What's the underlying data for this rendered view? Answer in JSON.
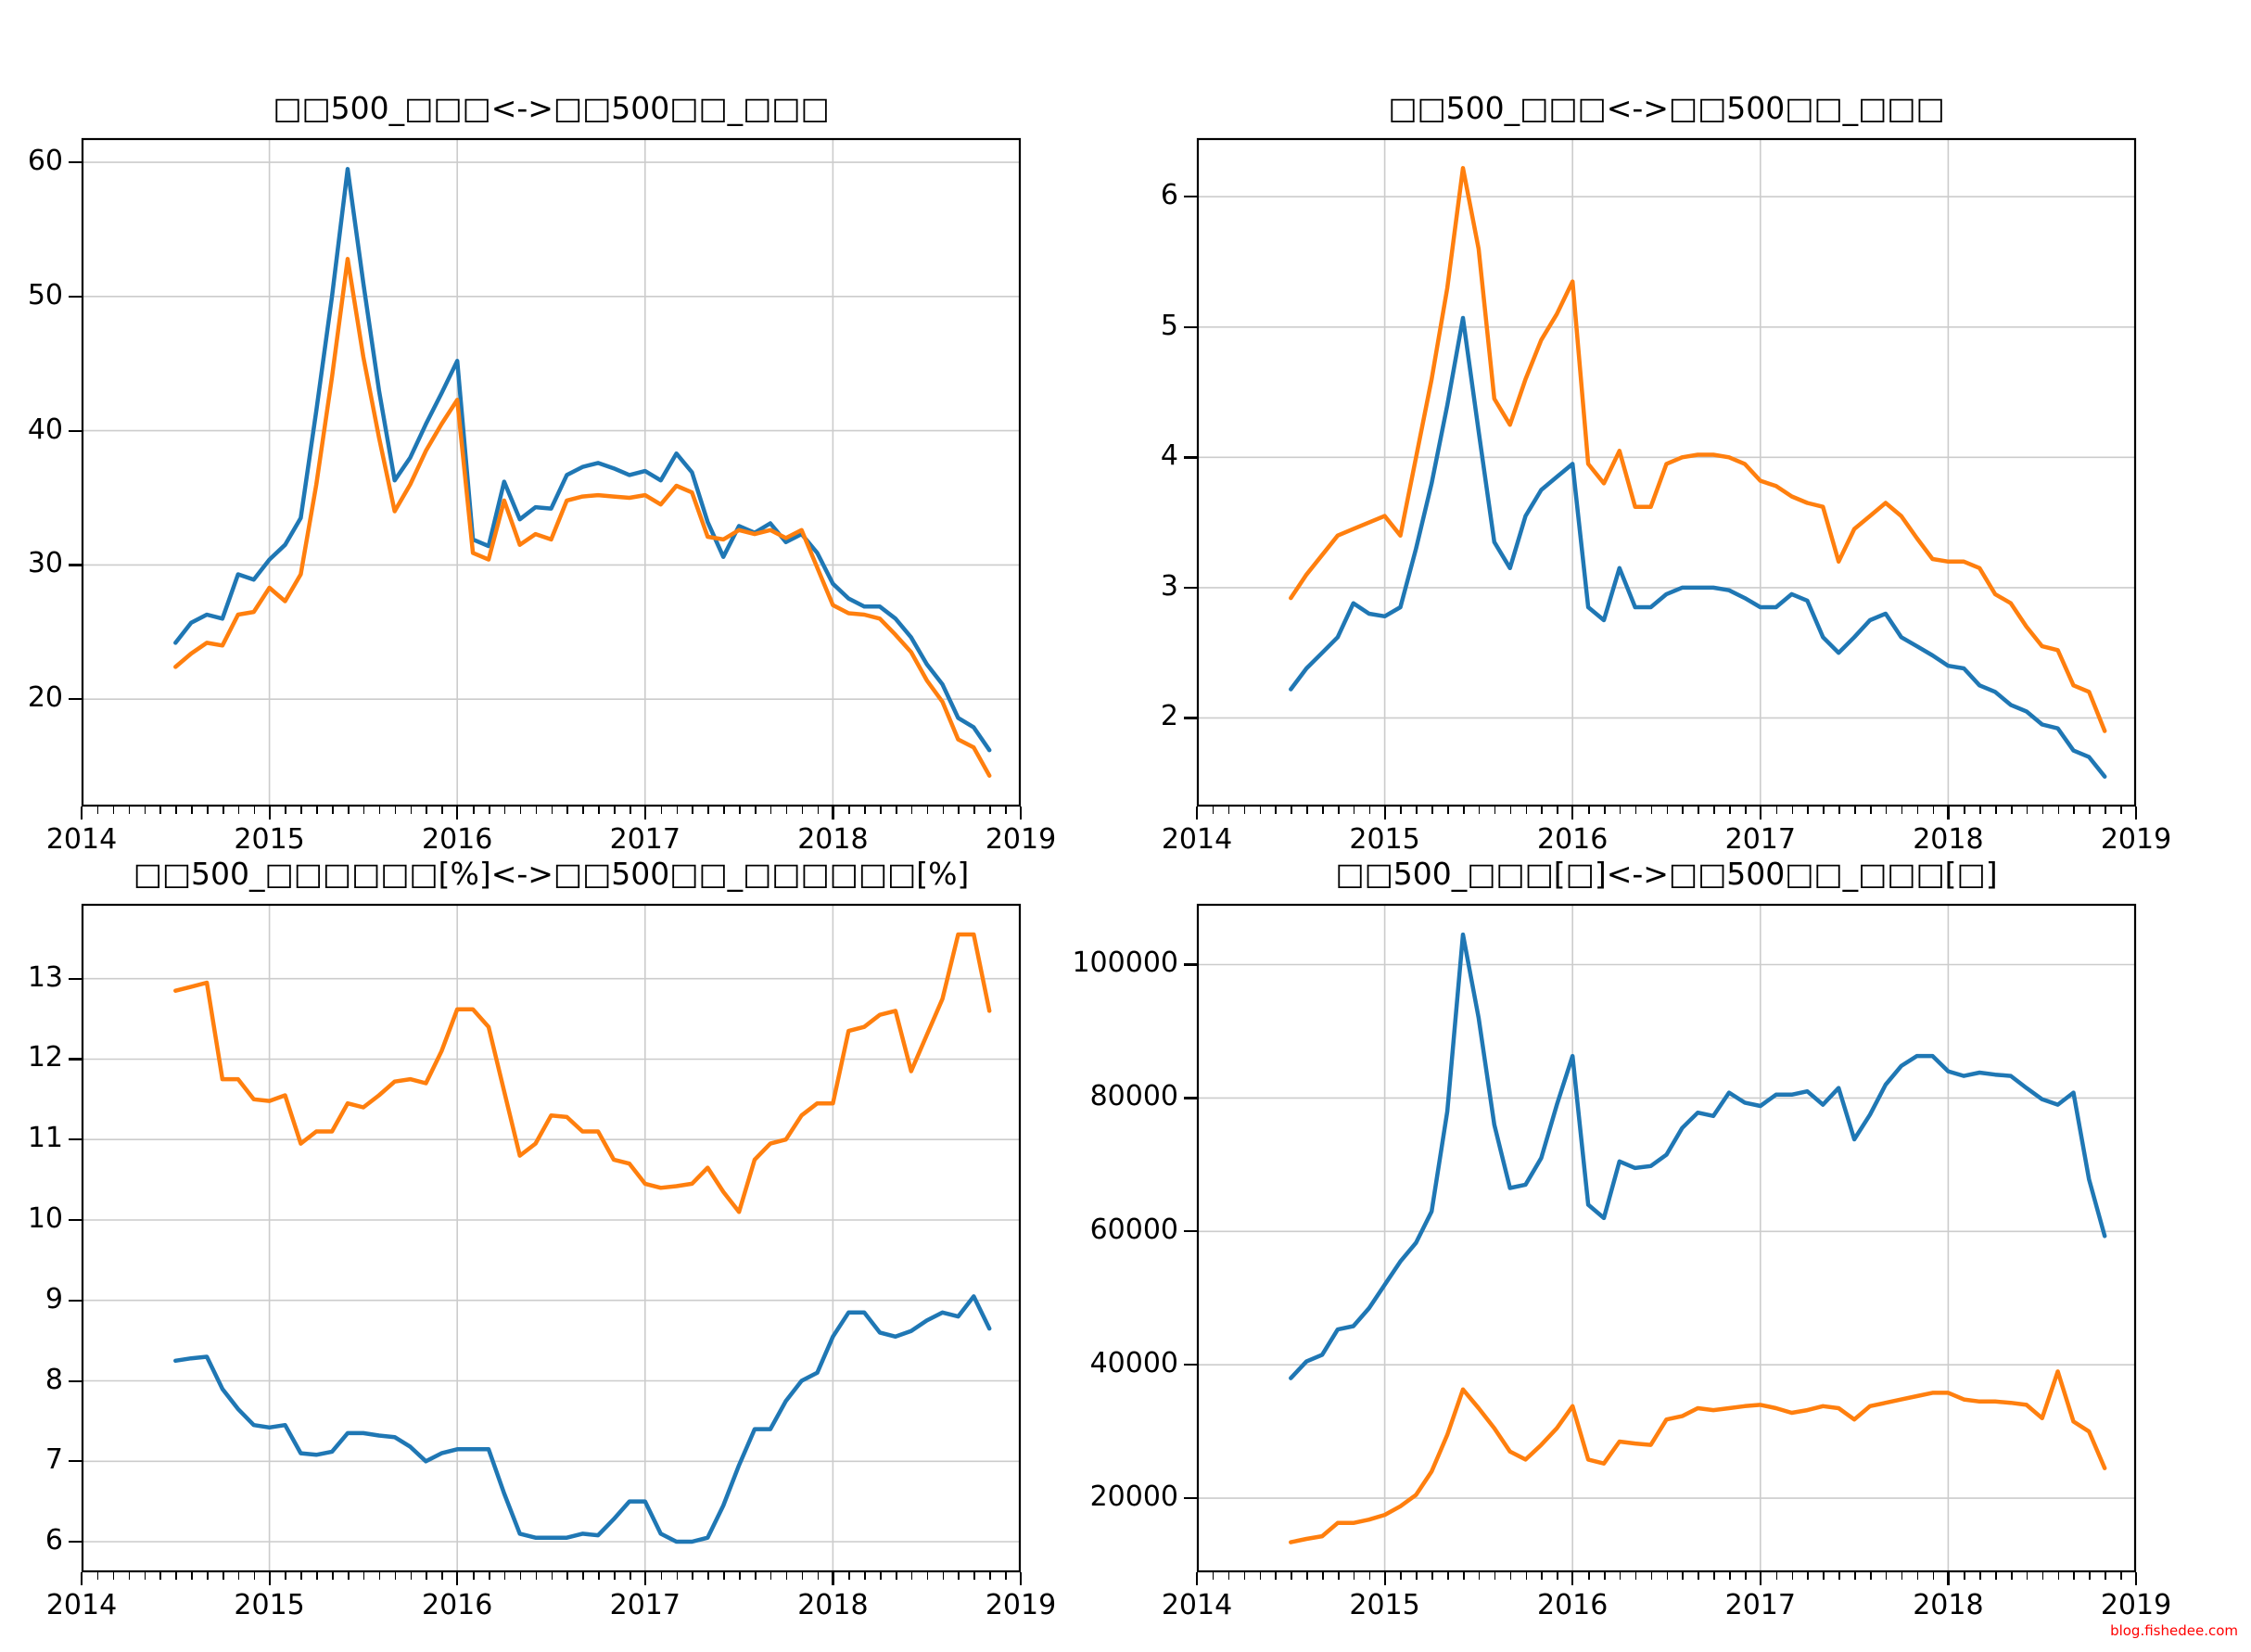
{
  "watermark": {
    "text": "blog.fishedee.com",
    "color": "#ff0000"
  },
  "palette": {
    "series_blue": "#1f77b4",
    "series_orange": "#ff7f0e",
    "grid": "#cccccc",
    "axis": "#000000",
    "background": "#ffffff"
  },
  "chart_data": [
    {
      "type": "line",
      "title": "□□500_□□□<->□□500□□_□□□",
      "xlabel": "",
      "ylabel": "",
      "xlim": [
        2014,
        2019
      ],
      "ylim": [
        12.0,
        61.8
      ],
      "x_ticks": [
        2014,
        2015,
        2016,
        2017,
        2018,
        2019
      ],
      "y_ticks": [
        20,
        30,
        40,
        50,
        60
      ],
      "x_minor_per_year": 12,
      "x_start": 2014.5,
      "x_step": 0.083333,
      "grid": true,
      "legend": "none",
      "series": [
        {
          "name": "blue",
          "color": "#1f77b4",
          "values": [
            24.2,
            25.7,
            26.3,
            26.0,
            29.3,
            28.9,
            30.4,
            31.5,
            33.5,
            41.5,
            50.0,
            59.5,
            51.0,
            43.0,
            36.3,
            38.0,
            40.5,
            42.8,
            45.2,
            31.9,
            31.4,
            36.2,
            33.4,
            34.3,
            34.2,
            36.7,
            37.3,
            37.6,
            37.2,
            36.7,
            37.0,
            36.3,
            38.3,
            36.9,
            33.2,
            30.6,
            32.9,
            32.4,
            33.1,
            31.7,
            32.3,
            30.9,
            28.6,
            27.5,
            26.9,
            26.9,
            26.0,
            24.6,
            22.6,
            21.1,
            18.6,
            17.9,
            16.2
          ]
        },
        {
          "name": "orange",
          "color": "#ff7f0e",
          "values": [
            22.4,
            23.4,
            24.2,
            24.0,
            26.3,
            26.5,
            28.3,
            27.3,
            29.3,
            36.0,
            44.0,
            52.8,
            45.5,
            39.5,
            34.0,
            36.0,
            38.5,
            40.5,
            42.3,
            30.9,
            30.4,
            34.8,
            31.5,
            32.3,
            31.9,
            34.8,
            35.1,
            35.2,
            35.1,
            35.0,
            35.2,
            34.5,
            35.9,
            35.4,
            32.1,
            31.9,
            32.6,
            32.3,
            32.6,
            32.0,
            32.6,
            29.8,
            27.0,
            26.4,
            26.3,
            26.0,
            24.8,
            23.5,
            21.4,
            19.8,
            17.0,
            16.4,
            14.3
          ]
        }
      ]
    },
    {
      "type": "line",
      "title": "□□500_□□□<->□□500□□_□□□",
      "xlabel": "",
      "ylabel": "",
      "xlim": [
        2014,
        2019
      ],
      "ylim": [
        1.32,
        6.45
      ],
      "x_ticks": [
        2014,
        2015,
        2016,
        2017,
        2018,
        2019
      ],
      "y_ticks": [
        2,
        3,
        4,
        5,
        6
      ],
      "x_minor_per_year": 12,
      "x_start": 2014.5,
      "x_step": 0.083333,
      "grid": true,
      "legend": "none",
      "series": [
        {
          "name": "blue",
          "color": "#1f77b4",
          "values": [
            2.22,
            2.38,
            2.5,
            2.62,
            2.88,
            2.8,
            2.78,
            2.85,
            3.3,
            3.8,
            4.4,
            5.07,
            4.2,
            3.35,
            3.15,
            3.55,
            3.75,
            3.85,
            3.95,
            2.85,
            2.75,
            3.15,
            2.85,
            2.85,
            2.95,
            3.0,
            3.0,
            3.0,
            2.98,
            2.92,
            2.85,
            2.85,
            2.95,
            2.9,
            2.62,
            2.5,
            2.62,
            2.75,
            2.8,
            2.62,
            2.55,
            2.48,
            2.4,
            2.38,
            2.25,
            2.2,
            2.1,
            2.05,
            1.95,
            1.92,
            1.75,
            1.7,
            1.55
          ]
        },
        {
          "name": "orange",
          "color": "#ff7f0e",
          "values": [
            2.92,
            3.1,
            3.25,
            3.4,
            3.45,
            3.5,
            3.55,
            3.4,
            4.0,
            4.6,
            5.3,
            6.22,
            5.6,
            4.45,
            4.25,
            4.6,
            4.9,
            5.1,
            5.35,
            3.95,
            3.8,
            4.05,
            3.62,
            3.62,
            3.95,
            4.0,
            4.02,
            4.02,
            4.0,
            3.95,
            3.82,
            3.78,
            3.7,
            3.65,
            3.62,
            3.2,
            3.45,
            3.55,
            3.65,
            3.55,
            3.38,
            3.22,
            3.2,
            3.2,
            3.15,
            2.95,
            2.88,
            2.7,
            2.55,
            2.52,
            2.25,
            2.2,
            1.9
          ]
        }
      ]
    },
    {
      "type": "line",
      "title": "□□500_□□□□□□[%]<->□□500□□_□□□□□□[%]",
      "xlabel": "",
      "ylabel": "",
      "xlim": [
        2014,
        2019
      ],
      "ylim": [
        5.62,
        13.93
      ],
      "x_ticks": [
        2014,
        2015,
        2016,
        2017,
        2018,
        2019
      ],
      "y_ticks": [
        6,
        7,
        8,
        9,
        10,
        11,
        12,
        13
      ],
      "x_minor_per_year": 12,
      "x_start": 2014.5,
      "x_step": 0.083333,
      "grid": true,
      "legend": "none",
      "series": [
        {
          "name": "blue",
          "color": "#1f77b4",
          "values": [
            8.25,
            8.28,
            8.3,
            7.9,
            7.65,
            7.45,
            7.42,
            7.45,
            7.1,
            7.08,
            7.12,
            7.35,
            7.35,
            7.32,
            7.3,
            7.18,
            7.0,
            7.1,
            7.15,
            7.15,
            7.15,
            6.6,
            6.1,
            6.05,
            6.05,
            6.05,
            6.1,
            6.08,
            6.28,
            6.5,
            6.5,
            6.1,
            6.0,
            6.0,
            6.05,
            6.45,
            6.95,
            7.4,
            7.4,
            7.75,
            8.0,
            8.1,
            8.55,
            8.85,
            8.85,
            8.6,
            8.55,
            8.62,
            8.75,
            8.85,
            8.8,
            9.05,
            8.65
          ]
        },
        {
          "name": "orange",
          "color": "#ff7f0e",
          "values": [
            12.85,
            12.9,
            12.95,
            11.75,
            11.75,
            11.5,
            11.48,
            11.55,
            10.95,
            11.1,
            11.1,
            11.45,
            11.4,
            11.55,
            11.72,
            11.75,
            11.7,
            12.1,
            12.62,
            12.62,
            12.4,
            11.6,
            10.8,
            10.95,
            11.3,
            11.28,
            11.1,
            11.1,
            10.75,
            10.7,
            10.45,
            10.4,
            10.42,
            10.45,
            10.65,
            10.35,
            10.1,
            10.75,
            10.95,
            11.0,
            11.3,
            11.45,
            11.45,
            12.35,
            12.4,
            12.55,
            12.6,
            11.85,
            12.3,
            12.75,
            13.55,
            13.55,
            12.6
          ]
        }
      ]
    },
    {
      "type": "line",
      "title": "□□500_□□□[□]<->□□500□□_□□□[□]",
      "xlabel": "",
      "ylabel": "",
      "xlim": [
        2014,
        2019
      ],
      "ylim": [
        8900,
        109100
      ],
      "x_ticks": [
        2014,
        2015,
        2016,
        2017,
        2018,
        2019
      ],
      "y_ticks": [
        20000,
        40000,
        60000,
        80000,
        100000
      ],
      "x_minor_per_year": 12,
      "x_start": 2014.5,
      "x_step": 0.083333,
      "grid": true,
      "legend": "none",
      "series": [
        {
          "name": "blue",
          "color": "#1f77b4",
          "values": [
            38000,
            40500,
            41500,
            45300,
            45800,
            48500,
            52000,
            55500,
            58300,
            63000,
            78000,
            104500,
            92000,
            76000,
            66500,
            67000,
            71000,
            79000,
            86300,
            64000,
            62000,
            70500,
            69500,
            69800,
            71500,
            75500,
            77800,
            77300,
            80800,
            79300,
            78800,
            80500,
            80500,
            81000,
            79000,
            81500,
            73800,
            77500,
            82000,
            84800,
            86300,
            86300,
            84000,
            83300,
            83800,
            83500,
            83300,
            81500,
            79800,
            79000,
            80800,
            67800,
            59300
          ]
        },
        {
          "name": "orange",
          "color": "#ff7f0e",
          "values": [
            13400,
            13900,
            14300,
            16300,
            16300,
            16800,
            17500,
            18800,
            20500,
            24000,
            29500,
            36300,
            33500,
            30500,
            27000,
            25800,
            28000,
            30500,
            33800,
            25800,
            25200,
            28500,
            28200,
            28000,
            31800,
            32300,
            33500,
            33200,
            33500,
            33800,
            34000,
            33500,
            32800,
            33200,
            33800,
            33500,
            31800,
            33800,
            34300,
            34800,
            35300,
            35800,
            35800,
            34800,
            34500,
            34500,
            34300,
            34000,
            32000,
            39000,
            31500,
            30000,
            24500
          ]
        }
      ]
    }
  ]
}
